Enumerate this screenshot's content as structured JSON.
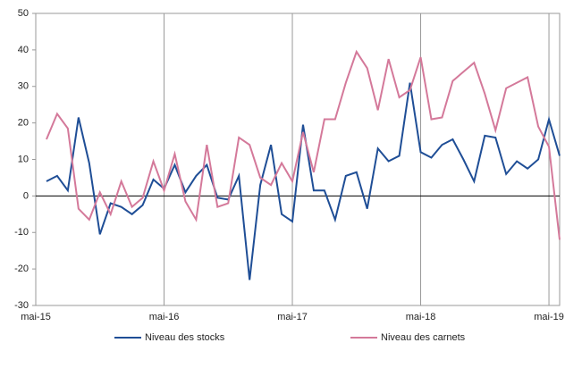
{
  "chart_data": {
    "type": "line",
    "x": [
      1,
      2,
      3,
      4,
      5,
      6,
      7,
      8,
      9,
      10,
      11,
      12,
      13,
      14,
      15,
      16,
      17,
      18,
      19,
      20,
      21,
      22,
      23,
      24,
      25,
      26,
      27,
      28,
      29,
      30,
      31,
      32,
      33,
      34,
      35,
      36,
      37,
      38,
      39,
      40,
      41,
      42,
      43,
      44,
      45,
      46,
      47,
      48,
      49
    ],
    "series": [
      {
        "name": "Niveau des stocks",
        "color": "#1f4e96",
        "values": [
          4,
          5.5,
          1.5,
          21.5,
          9,
          -10.5,
          -2,
          -3,
          -5,
          -2.5,
          4.5,
          2,
          8.5,
          1,
          5.5,
          8.5,
          -0.5,
          -1,
          5.5,
          -23,
          3,
          14,
          -5,
          -7,
          19.5,
          1.5,
          1.5,
          -6.5,
          5.5,
          6.5,
          -3.5,
          13,
          9.5,
          11,
          31,
          12,
          10.5,
          14,
          15.5,
          10,
          4,
          16.5,
          16,
          6,
          9.5,
          7.5,
          10,
          21,
          11
        ]
      },
      {
        "name": "Niveau des carnets",
        "color": "#d4799a",
        "values": [
          15.5,
          22.5,
          18.5,
          -3.5,
          -6.5,
          1,
          -5,
          4,
          -3,
          -0.5,
          9.5,
          1.5,
          11.5,
          -1.5,
          -6.5,
          14,
          -3,
          -2,
          16,
          14,
          5,
          3,
          9,
          4,
          17.5,
          6.5,
          21,
          21,
          31,
          39.5,
          35,
          23.5,
          37.5,
          27,
          29,
          38,
          21,
          21.5,
          31.5,
          34,
          36.5,
          28,
          18,
          29.5,
          31,
          32.5,
          19,
          13.5,
          -12
        ]
      }
    ],
    "xlim": [
      0,
      49
    ],
    "xticks": [
      {
        "value": 0,
        "label": "mai-15"
      },
      {
        "value": 12,
        "label": "mai-16"
      },
      {
        "value": 24,
        "label": "mai-17"
      },
      {
        "value": 36,
        "label": "mai-18"
      },
      {
        "value": 48,
        "label": "mai-19"
      }
    ],
    "ylim": [
      -30,
      50
    ],
    "yticks": [
      -30,
      -20,
      -10,
      0,
      10,
      20,
      30,
      40,
      50
    ],
    "grid": "x"
  }
}
